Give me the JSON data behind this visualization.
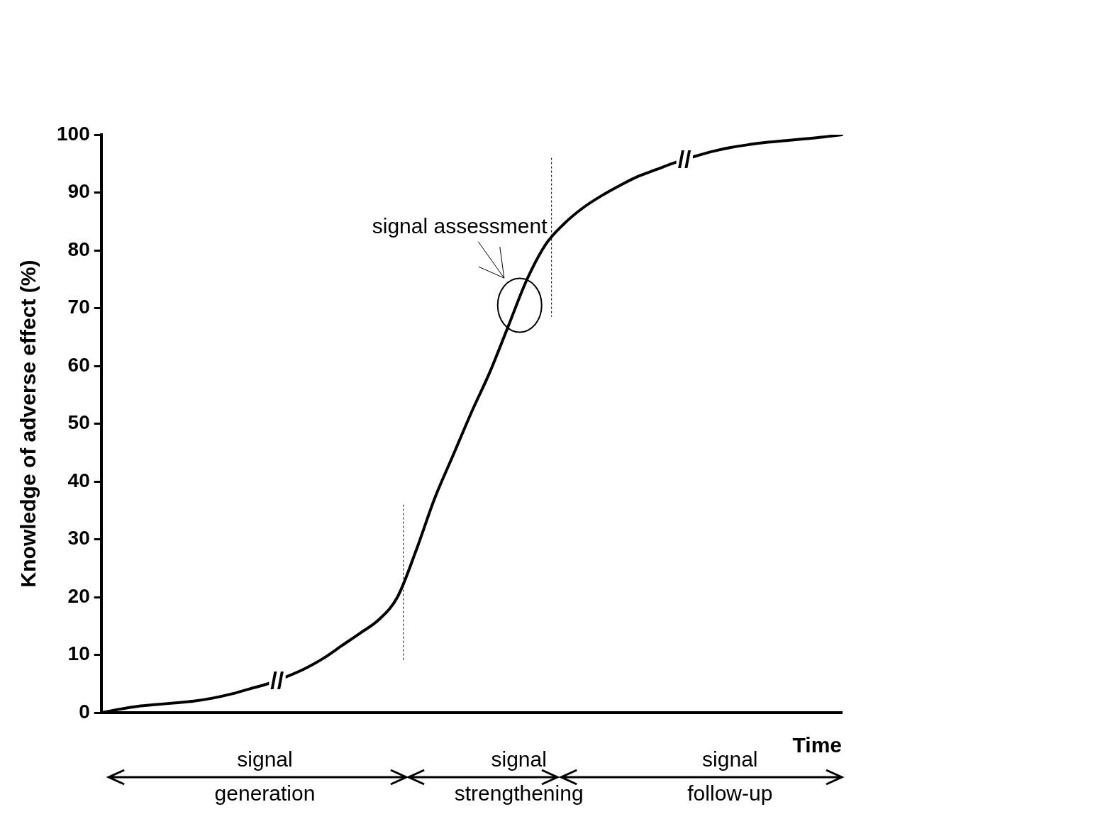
{
  "chart_data": {
    "type": "line",
    "xlabel": "Time",
    "ylabel": "Knowledge of adverse effect (%)",
    "categories": [
      null,
      null,
      null,
      null,
      null,
      null,
      null,
      null,
      null,
      null,
      null,
      null,
      null,
      null,
      null,
      null,
      null,
      null,
      null,
      null,
      null,
      null,
      null,
      null,
      null,
      null,
      null,
      null,
      null,
      null,
      null,
      null,
      null,
      null,
      null,
      null,
      null,
      null,
      null,
      null,
      null
    ],
    "series": [
      {
        "color": "#000000",
        "values": [
          0,
          0.6,
          1.1,
          1.4,
          1.7,
          2.0,
          2.5,
          3.2,
          4.1,
          5.0,
          6.2,
          7.6,
          9.4,
          11.6,
          13.8,
          16.1,
          20,
          28,
          37,
          44.5,
          52,
          59,
          67,
          75,
          81,
          84.6,
          87.3,
          89.4,
          91.2,
          92.8,
          94,
          95.2,
          96.2,
          97.1,
          97.8,
          98.3,
          98.7,
          99,
          99.3,
          99.6,
          100
        ]
      }
    ],
    "ylim": [
      0,
      100
    ],
    "yticks": [
      0,
      10,
      20,
      30,
      40,
      50,
      60,
      70,
      80,
      90,
      100
    ],
    "annotations": [
      "signal assessment",
      "//",
      "//",
      "signal generation",
      "signal strengthening",
      "signal follow-up"
    ],
    "grid": false,
    "legend": false,
    "tick_labels": "y",
    "marker": "none",
    "line_style": "solid"
  }
}
